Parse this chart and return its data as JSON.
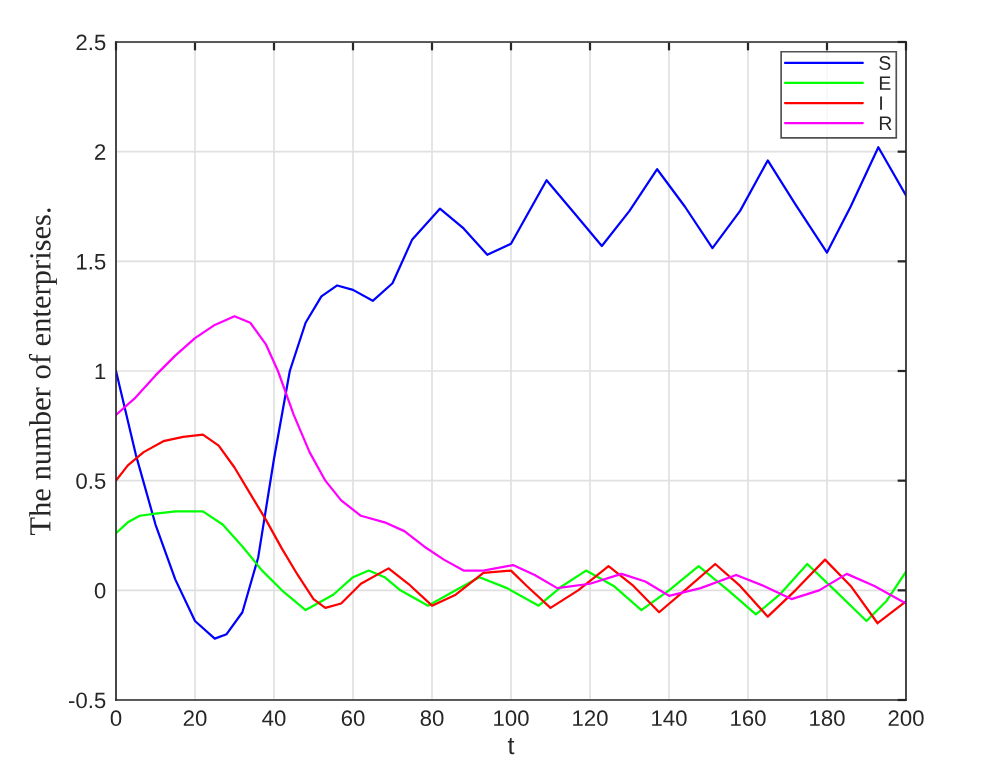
{
  "chart_data": {
    "type": "line",
    "xlabel": "t",
    "ylabel": "The number of enterprises.",
    "xlim": [
      0,
      200
    ],
    "ylim": [
      -0.5,
      2.5
    ],
    "xticks": [
      0,
      20,
      40,
      60,
      80,
      100,
      120,
      140,
      160,
      180,
      200
    ],
    "yticks": [
      -0.5,
      0,
      0.5,
      1,
      1.5,
      2,
      2.5
    ],
    "grid": true,
    "legend": "top right",
    "marker": "none",
    "line_style": "solid",
    "series": [
      {
        "name": "S",
        "color": "#0000ff",
        "x": [
          0,
          5,
          10,
          15,
          20,
          25,
          28,
          32,
          36,
          40,
          44,
          48,
          52,
          56,
          60,
          65,
          70,
          75,
          82,
          88,
          94,
          100,
          109,
          116,
          123,
          130,
          137,
          144,
          151,
          158,
          165,
          172,
          180,
          186,
          193,
          200
        ],
        "values": [
          1.0,
          0.62,
          0.3,
          0.05,
          -0.14,
          -0.22,
          -0.2,
          -0.1,
          0.15,
          0.6,
          1.0,
          1.22,
          1.34,
          1.39,
          1.37,
          1.32,
          1.4,
          1.6,
          1.74,
          1.65,
          1.53,
          1.58,
          1.87,
          1.72,
          1.57,
          1.73,
          1.92,
          1.75,
          1.56,
          1.73,
          1.96,
          1.76,
          1.54,
          1.75,
          2.02,
          1.8
        ]
      },
      {
        "name": "E",
        "color": "#00ff00",
        "x": [
          0,
          3,
          6,
          10,
          15,
          22,
          27,
          32,
          37,
          42,
          48,
          55,
          60,
          64,
          68,
          72,
          79,
          86,
          92,
          99,
          107,
          113,
          119,
          126,
          133,
          140,
          147.5,
          155,
          162,
          168,
          175,
          182,
          190,
          195,
          200
        ],
        "values": [
          0.26,
          0.31,
          0.34,
          0.35,
          0.36,
          0.36,
          0.3,
          0.2,
          0.09,
          0.0,
          -0.09,
          -0.02,
          0.06,
          0.09,
          0.06,
          0.0,
          -0.07,
          0.0,
          0.06,
          0.01,
          -0.07,
          0.02,
          0.09,
          0.02,
          -0.09,
          0.0,
          0.11,
          0.0,
          -0.11,
          -0.02,
          0.12,
          0.0,
          -0.14,
          -0.05,
          0.085
        ]
      },
      {
        "name": "I",
        "color": "#ff0000",
        "x": [
          0,
          3,
          7,
          12,
          17,
          22,
          26,
          30,
          34,
          38,
          42,
          46,
          50,
          53,
          57,
          62,
          69,
          74,
          80,
          86,
          93,
          100,
          104,
          110,
          117,
          124.7,
          131,
          137.5,
          144,
          151.7,
          158,
          165,
          172,
          179.5,
          186,
          192.8,
          200
        ],
        "values": [
          0.5,
          0.57,
          0.63,
          0.68,
          0.7,
          0.71,
          0.66,
          0.56,
          0.44,
          0.32,
          0.19,
          0.07,
          -0.04,
          -0.08,
          -0.06,
          0.03,
          0.1,
          0.03,
          -0.07,
          -0.02,
          0.08,
          0.09,
          0.02,
          -0.08,
          0.0,
          0.11,
          0.02,
          -0.1,
          0.0,
          0.12,
          0.02,
          -0.12,
          0.0,
          0.14,
          0.02,
          -0.15,
          -0.05
        ]
      },
      {
        "name": "R",
        "color": "#ff00ff",
        "x": [
          0,
          5,
          10,
          15,
          20,
          25,
          30,
          34,
          38,
          41,
          45,
          49,
          53,
          57,
          62,
          68,
          73,
          78,
          83,
          88,
          93,
          100.5,
          106,
          111.7,
          120,
          128,
          134,
          140,
          148,
          157,
          164,
          171,
          178,
          185,
          192,
          200
        ],
        "values": [
          0.8,
          0.88,
          0.98,
          1.07,
          1.15,
          1.21,
          1.25,
          1.22,
          1.12,
          1.0,
          0.8,
          0.63,
          0.5,
          0.41,
          0.34,
          0.31,
          0.27,
          0.2,
          0.14,
          0.09,
          0.09,
          0.115,
          0.07,
          0.01,
          0.03,
          0.075,
          0.04,
          -0.025,
          0.01,
          0.07,
          0.02,
          -0.04,
          0.0,
          0.075,
          0.02,
          -0.06
        ]
      }
    ]
  }
}
